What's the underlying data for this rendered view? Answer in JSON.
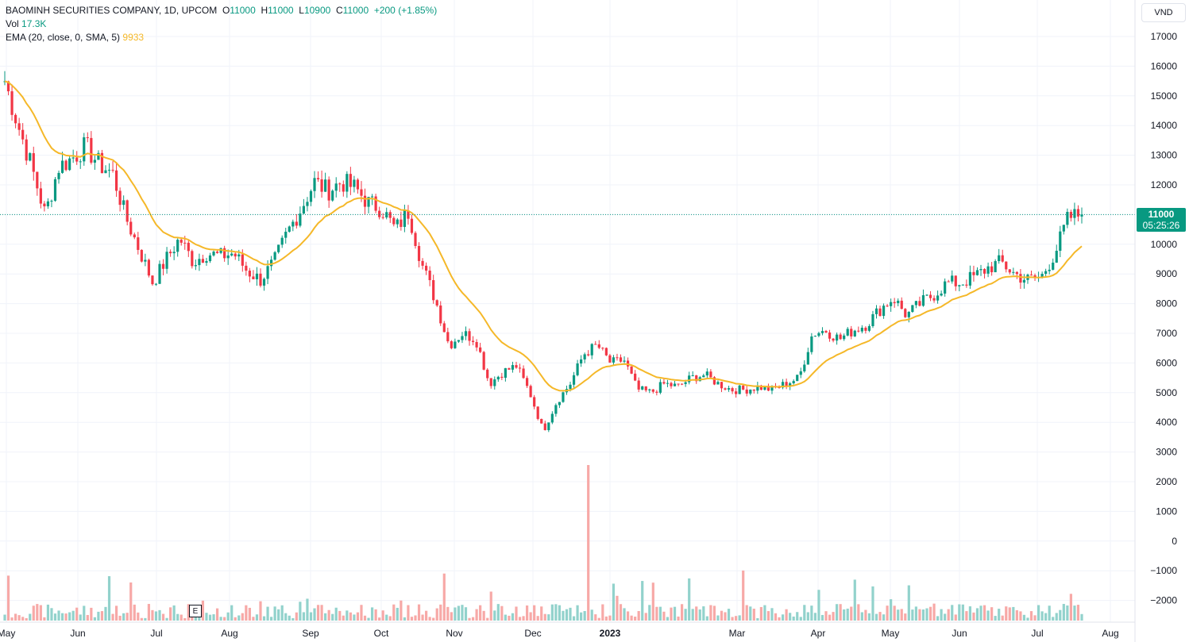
{
  "legend": {
    "symbol": "BAOMINH SECURITIES COMPANY, 1D, UPCOM",
    "o_label": "O",
    "o_value": "11000",
    "h_label": "H",
    "h_value": "11000",
    "l_label": "L",
    "l_value": "10900",
    "c_label": "C",
    "c_value": "11000",
    "change": "+200 (+1.85%)",
    "vol_label": "Vol",
    "vol_value": "17.3K",
    "ema_label": "EMA (20, close, 0, SMA, 5)",
    "ema_value": "9933"
  },
  "currency": "VND",
  "last_price": {
    "price": "11000",
    "countdown": "05:25:26"
  },
  "earnings_marker": "E",
  "colors": {
    "up": "#089981",
    "down": "#f23645",
    "ema": "#f5b829",
    "grid": "#f0f3fa",
    "vol_up": "#92d2cc",
    "vol_down": "#f7a9a7"
  },
  "chart_data": {
    "type": "candlestick",
    "title": "BAOMINH SECURITIES COMPANY, 1D, UPCOM",
    "ylim": [
      -2500,
      17500
    ],
    "y_ticks": [
      17000,
      16000,
      15000,
      14000,
      13000,
      12000,
      11000,
      10000,
      9000,
      8000,
      7000,
      6000,
      5000,
      4000,
      3000,
      2000,
      1000,
      0,
      -1000,
      -2000
    ],
    "x_ticks": [
      "May",
      "Jun",
      "Jul",
      "Aug",
      "Sep",
      "Oct",
      "Nov",
      "Dec",
      "2023",
      "Mar",
      "Apr",
      "May",
      "Jun",
      "Jul",
      "Aug"
    ],
    "x_tick_bold": [
      "2023"
    ],
    "anchors": [
      {
        "label": "May",
        "price": 15500
      },
      {
        "label": "May",
        "price": 14000
      },
      {
        "label": "May",
        "price": 12600
      },
      {
        "label": "May",
        "price": 11000
      },
      {
        "label": "May",
        "price": 12600
      },
      {
        "label": "May",
        "price": 12900
      },
      {
        "label": "Jun",
        "price": 13300
      },
      {
        "label": "Jun",
        "price": 12700
      },
      {
        "label": "Jun",
        "price": 12400
      },
      {
        "label": "Jun",
        "price": 10900
      },
      {
        "label": "Jun",
        "price": 9800
      },
      {
        "label": "Jun",
        "price": 8700
      },
      {
        "label": "Jun",
        "price": 9500
      },
      {
        "label": "Jul",
        "price": 10200
      },
      {
        "label": "Jul",
        "price": 9400
      },
      {
        "label": "Jul",
        "price": 9700
      },
      {
        "label": "Jul",
        "price": 9600
      },
      {
        "label": "Jul",
        "price": 9700
      },
      {
        "label": "Jul",
        "price": 9100
      },
      {
        "label": "Aug",
        "price": 8800
      },
      {
        "label": "Aug",
        "price": 9400
      },
      {
        "label": "Aug",
        "price": 10400
      },
      {
        "label": "Aug",
        "price": 11200
      },
      {
        "label": "Aug",
        "price": 12100
      },
      {
        "label": "Aug",
        "price": 11800
      },
      {
        "label": "Sep",
        "price": 12100
      },
      {
        "label": "Sep",
        "price": 11900
      },
      {
        "label": "Sep",
        "price": 11400
      },
      {
        "label": "Sep",
        "price": 11200
      },
      {
        "label": "Sep",
        "price": 10500
      },
      {
        "label": "Sep",
        "price": 11100
      },
      {
        "label": "Oct",
        "price": 9300
      },
      {
        "label": "Oct",
        "price": 8100
      },
      {
        "label": "Oct",
        "price": 6600
      },
      {
        "label": "Oct",
        "price": 7000
      },
      {
        "label": "Oct",
        "price": 6800
      },
      {
        "label": "Oct",
        "price": 5300
      },
      {
        "label": "Nov",
        "price": 5700
      },
      {
        "label": "Nov",
        "price": 5900
      },
      {
        "label": "Nov",
        "price": 5000
      },
      {
        "label": "Nov",
        "price": 3700
      },
      {
        "label": "Nov",
        "price": 4700
      },
      {
        "label": "Nov",
        "price": 5300
      },
      {
        "label": "Dec",
        "price": 6300
      },
      {
        "label": "Dec",
        "price": 6600
      },
      {
        "label": "Dec",
        "price": 6000
      },
      {
        "label": "Dec",
        "price": 6100
      },
      {
        "label": "Dec",
        "price": 5100
      },
      {
        "label": "Dec",
        "price": 5000
      },
      {
        "label": "2023",
        "price": 5300
      },
      {
        "label": "2023",
        "price": 5200
      },
      {
        "label": "2023",
        "price": 5500
      },
      {
        "label": "2023",
        "price": 5600
      },
      {
        "label": "2023",
        "price": 5300
      },
      {
        "label": "2023",
        "price": 5100
      },
      {
        "label": "Mar",
        "price": 5100
      },
      {
        "label": "Mar",
        "price": 5200
      },
      {
        "label": "Mar",
        "price": 5100
      },
      {
        "label": "Mar",
        "price": 5300
      },
      {
        "label": "Mar",
        "price": 5500
      },
      {
        "label": "Apr",
        "price": 7000
      },
      {
        "label": "Apr",
        "price": 7100
      },
      {
        "label": "Apr",
        "price": 6800
      },
      {
        "label": "Apr",
        "price": 7100
      },
      {
        "label": "Apr",
        "price": 7300
      },
      {
        "label": "Apr",
        "price": 7800
      },
      {
        "label": "May",
        "price": 8200
      },
      {
        "label": "May",
        "price": 7600
      },
      {
        "label": "May",
        "price": 8000
      },
      {
        "label": "May",
        "price": 8300
      },
      {
        "label": "May",
        "price": 8700
      },
      {
        "label": "Jun",
        "price": 8700
      },
      {
        "label": "Jun",
        "price": 8900
      },
      {
        "label": "Jun",
        "price": 9200
      },
      {
        "label": "Jun",
        "price": 9400
      },
      {
        "label": "Jun",
        "price": 9000
      },
      {
        "label": "Jun",
        "price": 8800
      },
      {
        "label": "Jul",
        "price": 8900
      },
      {
        "label": "Jul",
        "price": 9700
      },
      {
        "label": "Jul",
        "price": 10900
      },
      {
        "label": "Jul",
        "price": 11000
      }
    ],
    "ema": {
      "name": "EMA (20, close, 0, SMA, 5)",
      "last_value": 9933
    },
    "volume": {
      "name": "Vol",
      "last_value": "17.3K"
    }
  }
}
